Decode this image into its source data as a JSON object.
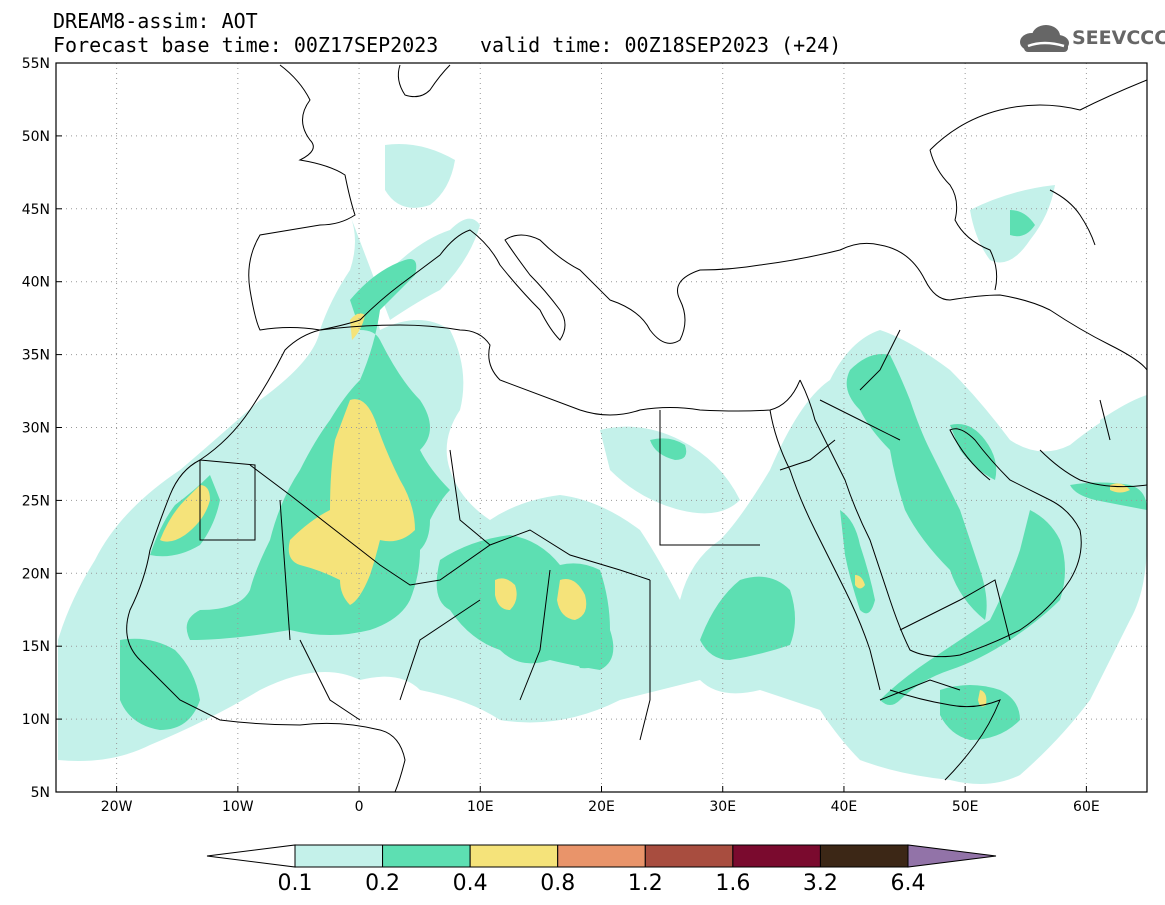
{
  "header": {
    "line1": "DREAM8-assim: AOT",
    "base_time": "Forecast base time: 00Z17SEP2023",
    "valid_time": "valid time: 00Z18SEP2023 (+24)"
  },
  "logo": {
    "text": "SEEVCCC",
    "icon": "cloud-icon"
  },
  "map": {
    "lon_range": [
      -25,
      65
    ],
    "lat_range": [
      5,
      55
    ],
    "lon_ticks": [
      {
        "value": -20,
        "label": "20W"
      },
      {
        "value": -10,
        "label": "10W"
      },
      {
        "value": 0,
        "label": "0"
      },
      {
        "value": 10,
        "label": "10E"
      },
      {
        "value": 20,
        "label": "20E"
      },
      {
        "value": 30,
        "label": "30E"
      },
      {
        "value": 40,
        "label": "40E"
      },
      {
        "value": 50,
        "label": "50E"
      },
      {
        "value": 60,
        "label": "60E"
      }
    ],
    "lat_ticks": [
      {
        "value": 55,
        "label": "55N"
      },
      {
        "value": 50,
        "label": "50N"
      },
      {
        "value": 45,
        "label": "45N"
      },
      {
        "value": 40,
        "label": "40N"
      },
      {
        "value": 35,
        "label": "35N"
      },
      {
        "value": 30,
        "label": "30N"
      },
      {
        "value": 25,
        "label": "25N"
      },
      {
        "value": 20,
        "label": "20N"
      },
      {
        "value": 15,
        "label": "15N"
      },
      {
        "value": 10,
        "label": "10N"
      },
      {
        "value": 5,
        "label": "5N"
      }
    ],
    "grid": "dotted"
  },
  "colorbar": {
    "levels": [
      "0.1",
      "0.2",
      "0.4",
      "0.8",
      "1.2",
      "1.6",
      "3.2",
      "6.4"
    ],
    "colors": [
      "#ffffff",
      "#c4f1ea",
      "#5ddfb2",
      "#f5e37a",
      "#e9946a",
      "#a84d3f",
      "#7a0a2e",
      "#3c2716",
      "#9273a8"
    ]
  }
}
